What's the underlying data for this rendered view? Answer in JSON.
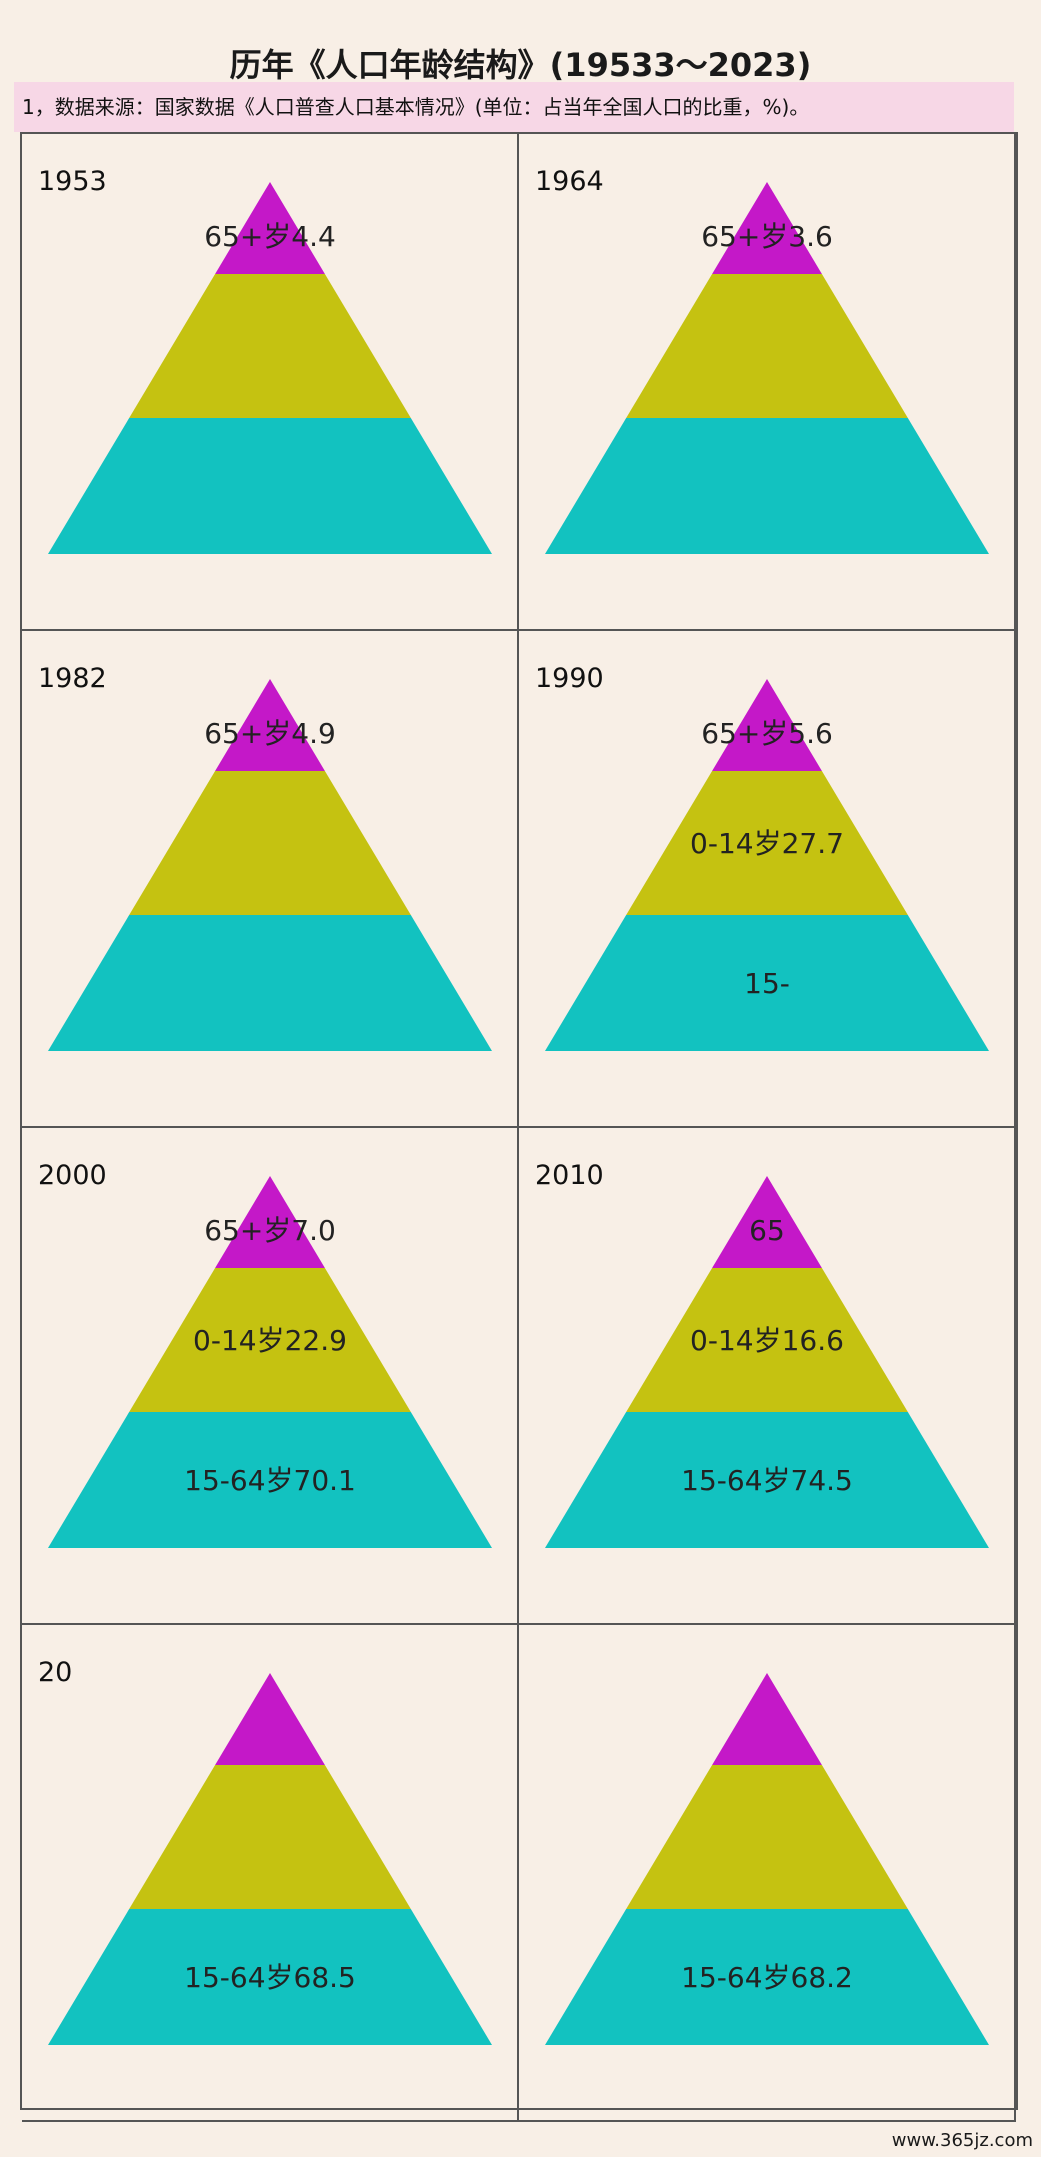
{
  "title": "历年《人口年龄结构》(19533～2023)",
  "source_note": "1，数据来源：国家数据《人口普查人口基本情况》(单位：占当年全国人口的比重，%)。",
  "footer": "www.365jz.com",
  "colors": {
    "age_65_plus": "#c418c8",
    "age_0_14": "#c5c211",
    "age_15_64": "#12c2c0",
    "background": "#f8efe6",
    "source_bg": "#f7d7e6"
  },
  "chart_data": {
    "type": "pyramid",
    "panels": [
      {
        "year": "1953",
        "labels": [
          "65+岁4.4",
          "",
          ""
        ]
      },
      {
        "year": "1964",
        "labels": [
          "65+岁3.6",
          "",
          ""
        ]
      },
      {
        "year": "1982",
        "labels": [
          "65+岁4.9",
          "",
          ""
        ]
      },
      {
        "year": "1990",
        "labels": [
          "65+岁5.6",
          "0-14岁27.7",
          "15-"
        ]
      },
      {
        "year": "2000",
        "labels": [
          "65+岁7.0",
          "0-14岁22.9",
          "15-64岁70.1"
        ]
      },
      {
        "year": "2010",
        "labels": [
          "65",
          "0-14岁16.6",
          "15-64岁74.5"
        ]
      },
      {
        "year": "20",
        "labels": [
          "",
          "",
          "15-64岁68.5"
        ]
      },
      {
        "year": "",
        "labels": [
          "",
          "",
          "15-64岁68.2"
        ]
      }
    ]
  }
}
